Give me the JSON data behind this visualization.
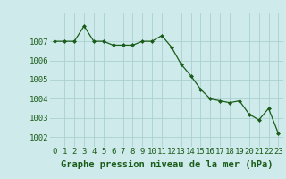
{
  "x": [
    0,
    1,
    2,
    3,
    4,
    5,
    6,
    7,
    8,
    9,
    10,
    11,
    12,
    13,
    14,
    15,
    16,
    17,
    18,
    19,
    20,
    21,
    22,
    23
  ],
  "y": [
    1007.0,
    1007.0,
    1007.0,
    1007.8,
    1007.0,
    1007.0,
    1006.8,
    1006.8,
    1006.8,
    1007.0,
    1007.0,
    1007.3,
    1006.7,
    1005.8,
    1005.2,
    1004.5,
    1004.0,
    1003.9,
    1003.8,
    1003.9,
    1003.2,
    1002.9,
    1003.5,
    1002.2
  ],
  "line_color": "#1a5c1a",
  "marker": "D",
  "marker_size": 2.0,
  "bg_color": "#ceeaea",
  "grid_color": "#aad0d0",
  "xlabel": "Graphe pression niveau de la mer (hPa)",
  "xlabel_color": "#1a5c1a",
  "xlabel_fontsize": 7.5,
  "tick_color": "#1a5c1a",
  "tick_fontsize": 6.5,
  "ylim": [
    1001.5,
    1008.5
  ],
  "yticks": [
    1002,
    1003,
    1004,
    1005,
    1006,
    1007
  ],
  "xlim": [
    -0.5,
    23.5
  ],
  "xticks": [
    0,
    1,
    2,
    3,
    4,
    5,
    6,
    7,
    8,
    9,
    10,
    11,
    12,
    13,
    14,
    15,
    16,
    17,
    18,
    19,
    20,
    21,
    22,
    23
  ]
}
